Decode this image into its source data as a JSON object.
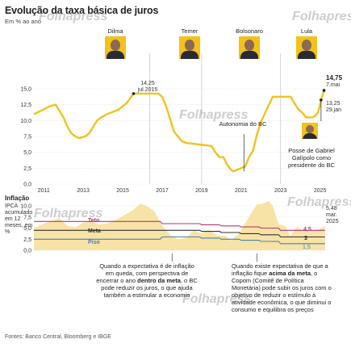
{
  "title": "Evolução da taxa básica de juros",
  "subtitle": "Em % ao ano",
  "presidents": [
    {
      "name": "Dilma"
    },
    {
      "name": "Temer"
    },
    {
      "name": "Bolsonaro"
    },
    {
      "name": "Lula"
    }
  ],
  "watermark": "Folhapress",
  "chart_data": [
    {
      "type": "line",
      "title": "Evolução da taxa básica de juros",
      "ylabel": "Em % ao ano",
      "ylim": [
        0,
        15
      ],
      "xlim": [
        2010.5,
        2025.3
      ],
      "yticks": [
        "0,0",
        "2,5",
        "5,0",
        "7,5",
        "10,0",
        "12,5",
        "15,0"
      ],
      "xticks": [
        "2011",
        "2013",
        "2015",
        "2017",
        "2019",
        "2021",
        "2023",
        "2025"
      ],
      "grid": true,
      "series": [
        {
          "x": [
            2010.5,
            2011.0,
            2011.3,
            2011.6,
            2011.8,
            2012.0,
            2012.2,
            2012.4,
            2012.6,
            2012.8,
            2013.1,
            2013.3,
            2013.5,
            2013.7,
            2013.9,
            2014.2,
            2014.8,
            2015.2,
            2015.55,
            2016.8,
            2017.0,
            2017.2,
            2017.4,
            2017.6,
            2017.8,
            2018.0,
            2018.2,
            2019.5,
            2019.7,
            2019.9,
            2020.1,
            2020.3,
            2020.5,
            2020.6,
            2021.2,
            2021.4,
            2021.6,
            2021.8,
            2022.0,
            2022.3,
            2022.6,
            2023.5,
            2023.7,
            2023.9,
            2024.1,
            2024.3,
            2024.6,
            2024.75,
            2024.9,
            2025.05,
            2025.2
          ],
          "y": [
            11.0,
            11.75,
            12.25,
            12.5,
            11.5,
            10.5,
            9.0,
            8.0,
            7.5,
            7.25,
            7.5,
            8.0,
            9.0,
            10.0,
            10.5,
            11.0,
            11.75,
            12.75,
            14.25,
            14.25,
            13.75,
            12.25,
            10.25,
            8.25,
            7.5,
            6.75,
            6.5,
            6.0,
            5.0,
            4.25,
            4.25,
            3.0,
            2.25,
            2.0,
            2.75,
            4.25,
            5.25,
            7.75,
            9.75,
            11.75,
            13.75,
            13.75,
            12.75,
            11.75,
            11.25,
            10.5,
            10.5,
            10.75,
            11.25,
            13.25,
            14.75
          ]
        }
      ],
      "annotations": [
        {
          "label": "14,25",
          "sub": "jul.2015",
          "x": 2015.55,
          "y": 14.25
        },
        {
          "label": "14,75",
          "sub": "7.mai",
          "x": 2025.2,
          "y": 14.75
        },
        {
          "label": "13,25",
          "sub": "29.jan",
          "x": 2025.05,
          "y": 13.25
        },
        {
          "label": "Autonomia do BC",
          "x": 2021.1,
          "y": 2.0
        },
        {
          "label": "Posse de Gabriel Galípolo como presidente do BC",
          "x": 2025.0,
          "y": 12.25
        }
      ]
    },
    {
      "type": "area",
      "title": "Inflação",
      "ylabel": "IPCA acumulado em 12 meses, em %",
      "ylim": [
        0,
        10
      ],
      "yticks": [
        "0,0",
        "2,5",
        "5,0",
        "7,5",
        "10,0"
      ],
      "grid": true,
      "series": [
        {
          "name": "IPCA",
          "x": [
            2010.5,
            2011.0,
            2011.4,
            2011.8,
            2012.2,
            2012.6,
            2013.0,
            2013.4,
            2013.8,
            2014.2,
            2014.6,
            2015.0,
            2015.5,
            2015.9,
            2016.2,
            2016.6,
            2017.0,
            2017.4,
            2017.8,
            2018.2,
            2018.6,
            2019.0,
            2019.4,
            2019.8,
            2020.2,
            2020.5,
            2020.9,
            2021.2,
            2021.5,
            2021.8,
            2022.1,
            2022.4,
            2022.6,
            2022.9,
            2023.2,
            2023.5,
            2023.8,
            2024.1,
            2024.4,
            2024.7,
            2025.0,
            2025.25
          ],
          "y": [
            5.0,
            6.0,
            6.6,
            7.2,
            5.5,
            5.2,
            6.2,
            6.5,
            5.8,
            6.0,
            6.7,
            7.7,
            9.0,
            10.5,
            10.0,
            8.8,
            5.5,
            3.5,
            2.5,
            2.8,
            4.4,
            3.8,
            4.6,
            3.3,
            3.3,
            2.2,
            3.9,
            6.0,
            8.3,
            10.3,
            10.5,
            11.9,
            10.0,
            5.9,
            5.6,
            3.2,
            5.2,
            4.5,
            4.2,
            4.4,
            4.8,
            5.5
          ]
        },
        {
          "name": "Teto",
          "color": "#b23a6f",
          "x": [
            2010.5,
            2016.9,
            2017.0,
            2018.9,
            2019.0,
            2019.9,
            2020.0,
            2020.9,
            2021.0,
            2021.9,
            2022.0,
            2022.9,
            2023.0,
            2025.25
          ],
          "y": [
            6.5,
            6.5,
            6.0,
            6.0,
            5.75,
            5.75,
            5.5,
            5.5,
            5.25,
            5.25,
            5.0,
            5.0,
            4.5,
            4.5
          ]
        },
        {
          "name": "Meta",
          "color": "#333333",
          "x": [
            2010.5,
            2016.9,
            2017.0,
            2018.9,
            2019.0,
            2019.9,
            2020.0,
            2020.9,
            2021.0,
            2021.9,
            2022.0,
            2022.9,
            2023.0,
            2025.25
          ],
          "y": [
            4.5,
            4.5,
            4.5,
            4.5,
            4.25,
            4.25,
            4.0,
            4.0,
            3.75,
            3.75,
            3.5,
            3.5,
            3.0,
            3.0
          ]
        },
        {
          "name": "Piso",
          "color": "#4a7fb5",
          "x": [
            2010.5,
            2016.9,
            2017.0,
            2018.9,
            2019.0,
            2019.9,
            2020.0,
            2020.9,
            2021.0,
            2021.9,
            2022.0,
            2022.9,
            2023.0,
            2025.25
          ],
          "y": [
            2.5,
            2.5,
            3.0,
            3.0,
            2.75,
            2.75,
            2.5,
            2.5,
            2.25,
            2.25,
            2.0,
            2.0,
            1.5,
            1.5
          ]
        }
      ],
      "end_labels": {
        "teto": "4,5",
        "meta": "3",
        "piso": "1,5"
      },
      "annotations": [
        {
          "label": "5,48",
          "sub": "mar. 2025"
        }
      ]
    }
  ],
  "note_left_pre": "Quando a expectativa é de inflação em queda, com perspectiva de encerrar o ano ",
  "note_left_bold": "dentro da meta",
  "note_left_post": ", o BC pode reduzir os juros, o que ajuda também a estimular a economia",
  "note_right_pre": "Quando existe expectativa de que a inflação fique ",
  "note_right_bold": "acima da meta",
  "note_right_post": ", o Copom (Comitê de Política Monetária) pode subir os juros com o objetivo de reduzir o estímulo à atividade econômica, o que diminui o consumo e equilibra os preços",
  "sources": "Fontes: Banco Central, Bloomberg e IBGE"
}
